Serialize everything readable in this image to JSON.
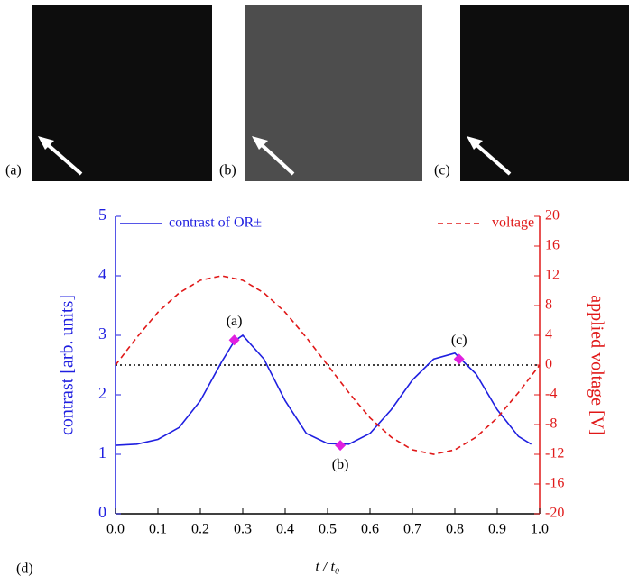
{
  "panels": [
    "(a)",
    "(b)",
    "(c)"
  ],
  "chart_data": {
    "type": "line",
    "panel_label": "(d)",
    "xlabel": "t / t₀",
    "ylabel": "contrast  [arb. units]",
    "y2label": "applied voltage [V]",
    "xlim": [
      0,
      1
    ],
    "ylim": [
      0,
      5
    ],
    "y2lim": [
      -20,
      20
    ],
    "xticks": [
      {
        "value": 0,
        "label": "0.0"
      },
      0.1,
      0.2,
      0.3,
      0.4,
      0.5,
      0.6,
      0.7,
      0.8,
      0.9,
      {
        "value": 1,
        "label": "1.0"
      }
    ],
    "yticks": [
      0,
      1,
      2,
      3,
      4,
      5
    ],
    "y2ticks": [
      -20,
      -16,
      -12,
      -8,
      -4,
      0,
      4,
      8,
      12,
      16,
      20
    ],
    "series": [
      {
        "name": "contrast of OR±",
        "color": "#1f1fe0",
        "dash": false,
        "x": [
          0,
          0.05,
          0.1,
          0.15,
          0.2,
          0.25,
          0.28,
          0.3,
          0.35,
          0.4,
          0.45,
          0.5,
          0.55,
          0.6,
          0.65,
          0.7,
          0.75,
          0.8,
          0.85,
          0.9,
          0.95,
          0.98
        ],
        "values": [
          1.15,
          1.17,
          1.25,
          1.45,
          1.9,
          2.55,
          2.9,
          3.0,
          2.6,
          1.9,
          1.35,
          1.18,
          1.17,
          1.35,
          1.75,
          2.25,
          2.6,
          2.7,
          2.35,
          1.75,
          1.3,
          1.17
        ]
      },
      {
        "name": "voltage",
        "color": "#e01818",
        "dash": true,
        "axis": "y2",
        "x": [
          0,
          0.05,
          0.1,
          0.15,
          0.2,
          0.25,
          0.3,
          0.35,
          0.4,
          0.45,
          0.5,
          0.55,
          0.6,
          0.65,
          0.7,
          0.75,
          0.8,
          0.85,
          0.9,
          0.95,
          1
        ],
        "values": [
          0,
          3.7,
          7.1,
          9.7,
          11.4,
          12,
          11.4,
          9.7,
          7.1,
          3.7,
          0,
          -3.7,
          -7.1,
          -9.7,
          -11.4,
          -12,
          -11.4,
          -9.7,
          -7.1,
          -3.7,
          0
        ]
      }
    ],
    "points": {
      "color": "#e020e0",
      "x": [
        0.28,
        0.53,
        0.81
      ],
      "values": [
        2.92,
        1.15,
        2.6
      ],
      "labels": [
        "(a)",
        "(b)",
        "(c)"
      ]
    },
    "reference_line": {
      "value": 0,
      "axis": "y2",
      "color": "#000"
    }
  }
}
